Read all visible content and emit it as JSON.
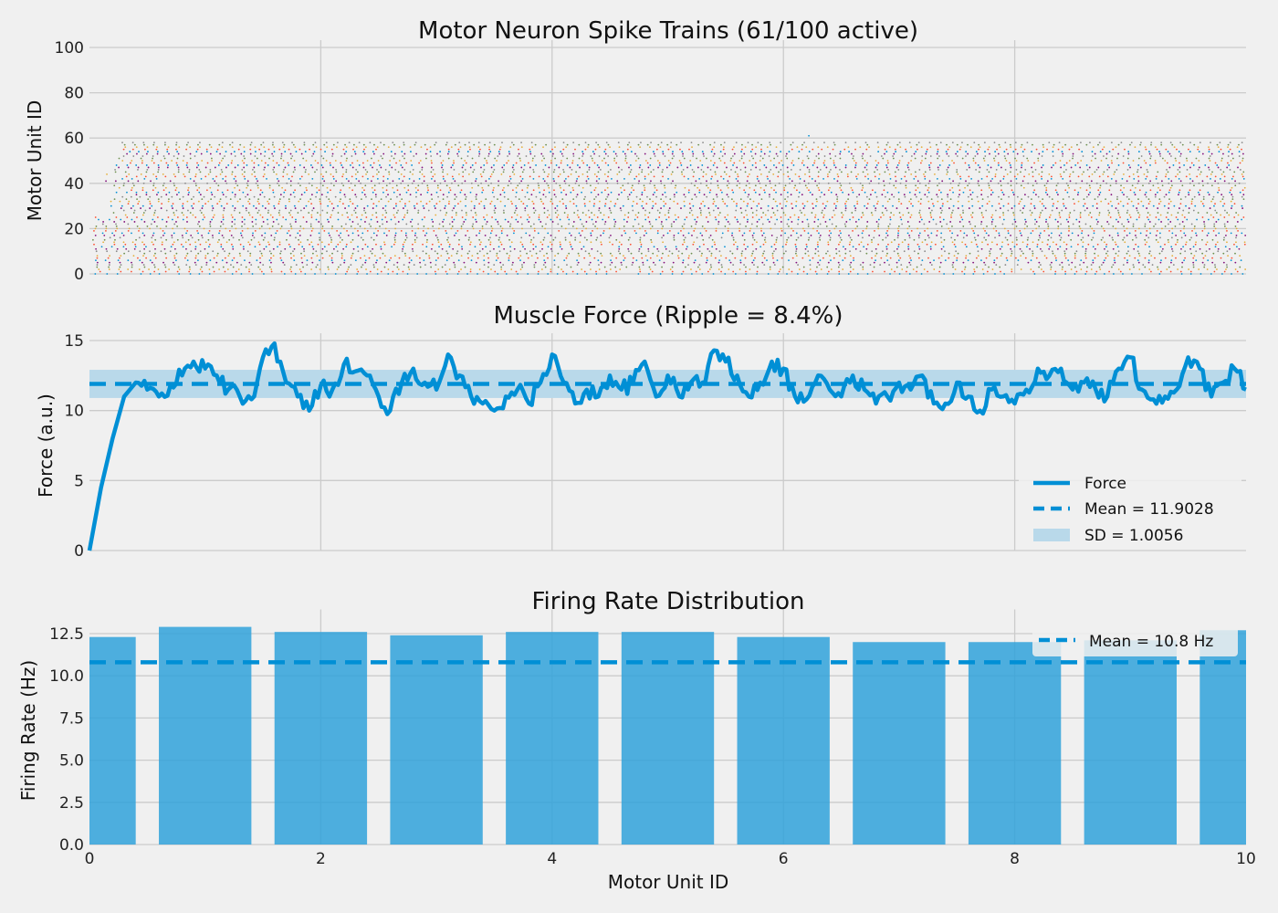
{
  "colors": {
    "background": "#f0f0f0",
    "grid": "#cbcbcb",
    "primary": "#008fd5",
    "bar": "#30a2da",
    "sd_band": "#b9d9ea",
    "spike_palette": [
      "#008fd5",
      "#fc4f30",
      "#e5ae38",
      "#6d904f",
      "#8b8b8b",
      "#810f7c"
    ]
  },
  "chart_data": [
    {
      "type": "scatter",
      "title": "Motor Neuron Spike Trains (61/100 active)",
      "ylabel": "Motor Unit ID",
      "xlim": [
        0,
        10
      ],
      "ylim": [
        0,
        100
      ],
      "yticks": [
        "0",
        "20",
        "40",
        "60",
        "80",
        "100"
      ],
      "xgrid": [
        2,
        4,
        6,
        8
      ],
      "active_units": 61,
      "total_units": 100,
      "grid": true
    },
    {
      "type": "line",
      "title": "Muscle Force (Ripple = 8.4%)",
      "ylabel": "Force (a.u.)",
      "xlim": [
        0,
        10
      ],
      "ylim": [
        0,
        15
      ],
      "yticks": [
        "0",
        "5",
        "10",
        "15"
      ],
      "xgrid": [
        2,
        4,
        6,
        8
      ],
      "grid": true,
      "legend_placement": "lower right",
      "legend": [
        "Force",
        "Mean = 11.9028",
        "SD = 1.0056"
      ],
      "mean": 11.9028,
      "sd": 1.0056,
      "x": [
        0,
        0.1,
        0.2,
        0.3,
        0.4,
        0.5,
        0.6,
        0.7,
        0.8,
        0.9,
        1.0,
        1.1,
        1.2,
        1.3,
        1.4,
        1.5,
        1.6,
        1.7,
        1.8,
        1.9,
        2.0,
        2.1,
        2.2,
        2.3,
        2.4,
        2.5,
        2.6,
        2.7,
        2.8,
        2.9,
        3.0,
        3.1,
        3.2,
        3.3,
        3.4,
        3.5,
        3.6,
        3.7,
        3.8,
        3.9,
        4.0,
        4.1,
        4.2,
        4.3,
        4.4,
        4.5,
        4.6,
        4.7,
        4.8,
        4.9,
        5.0,
        5.1,
        5.2,
        5.3,
        5.4,
        5.5,
        5.6,
        5.7,
        5.8,
        5.9,
        6.0,
        6.1,
        6.2,
        6.3,
        6.4,
        6.5,
        6.6,
        6.7,
        6.8,
        6.9,
        7.0,
        7.1,
        7.2,
        7.3,
        7.4,
        7.5,
        7.6,
        7.7,
        7.8,
        7.9,
        8.0,
        8.1,
        8.2,
        8.3,
        8.4,
        8.5,
        8.6,
        8.7,
        8.8,
        8.9,
        9.0,
        9.1,
        9.2,
        9.3,
        9.4,
        9.5,
        9.6,
        9.7,
        9.8,
        9.9,
        10.0
      ],
      "values": [
        0,
        4.5,
        8,
        11,
        12,
        11.5,
        11,
        11.8,
        12.5,
        13.5,
        13,
        12.5,
        11.5,
        11,
        10.8,
        13.8,
        14.8,
        12,
        11,
        10,
        11.8,
        11.5,
        13.3,
        12.8,
        12.5,
        11,
        10,
        12,
        13,
        12,
        11.5,
        14,
        12.5,
        11,
        10.5,
        10,
        11,
        11.5,
        10.5,
        12,
        14,
        12,
        10.5,
        11.5,
        11,
        12.5,
        11.5,
        12,
        13.5,
        11,
        12.5,
        11,
        12,
        12,
        14.3,
        13.5,
        12.5,
        11,
        12,
        13.5,
        13,
        11,
        10.8,
        12.5,
        11.5,
        11,
        12.5,
        11.5,
        10.5,
        11,
        12,
        11.5,
        12.5,
        10.5,
        10.5,
        12,
        11,
        10,
        11.5,
        11,
        10.5,
        11.5,
        13,
        12.5,
        13,
        11.5,
        12,
        11.5,
        11,
        13,
        13.8,
        11.5,
        10.8,
        11,
        11.5,
        13.8,
        13,
        11,
        12,
        13,
        11.5
      ]
    },
    {
      "type": "bar",
      "title": "Firing Rate Distribution",
      "xlabel": "Motor Unit ID",
      "ylabel": "Firing Rate (Hz)",
      "xlim": [
        0,
        10
      ],
      "ylim": [
        0,
        13.5
      ],
      "xticks": [
        "0",
        "2",
        "4",
        "6",
        "8",
        "10"
      ],
      "yticks": [
        "0.0",
        "2.5",
        "5.0",
        "7.5",
        "10.0",
        "12.5"
      ],
      "grid": true,
      "legend_placement": "upper right",
      "legend": [
        "Mean = 10.8 Hz"
      ],
      "mean": 10.8,
      "categories": [
        0,
        1,
        2,
        3,
        4,
        5,
        6,
        7,
        8,
        9,
        10
      ],
      "values": [
        12.3,
        12.9,
        12.6,
        12.4,
        12.6,
        12.6,
        12.3,
        12.0,
        12.0,
        12.1,
        12.7
      ]
    }
  ]
}
